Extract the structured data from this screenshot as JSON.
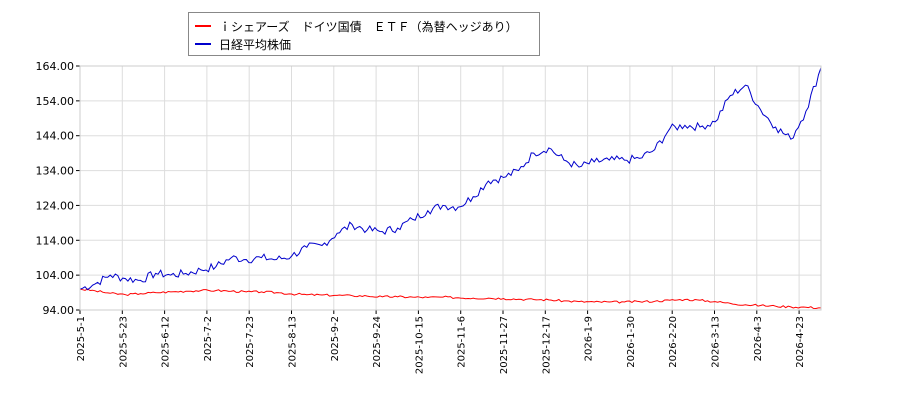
{
  "legend": {
    "series_a_label": "ｉシェアーズ　ドイツ国債　ＥＴＦ（為替ヘッジあり）",
    "series_b_label": "日経平均株価"
  },
  "chart_data": {
    "type": "line",
    "ylim": [
      94,
      164
    ],
    "yticks": [
      "94.00",
      "104.00",
      "114.00",
      "124.00",
      "134.00",
      "144.00",
      "154.00",
      "164.00"
    ],
    "xticks": [
      "2025-5-1",
      "2025-5-23",
      "2025-6-12",
      "2025-7-2",
      "2025-7-23",
      "2025-8-13",
      "2025-9-2",
      "2025-9-24",
      "2025-10-15",
      "2025-11-6",
      "2025-11-27",
      "2025-12-17",
      "2026-1-9",
      "2026-1-30",
      "2026-2-20",
      "2026-3-13",
      "2026-4-3",
      "2026-4-23"
    ],
    "grid": true,
    "legend_position": "top-left",
    "series": [
      {
        "name": "ｉシェアーズ　ドイツ国債　ＥＴＦ（為替ヘッジあり）",
        "color": "#ff0000",
        "values": [
          100,
          99.5,
          98.8,
          98.4,
          98.7,
          99.0,
          99.2,
          99.4,
          99.6,
          99.6,
          99.4,
          99.2,
          99.2,
          99.0,
          98.6,
          98.4,
          98.3,
          98.2,
          98.1,
          98.0,
          97.8,
          97.8,
          97.7,
          97.6,
          97.7,
          97.5,
          97.4,
          97.4,
          97.3,
          97.1,
          97.0,
          96.9,
          96.6,
          96.4,
          96.3,
          96.3,
          96.3,
          96.4,
          96.5,
          96.8,
          97.0,
          96.8,
          96.4,
          95.9,
          95.5,
          95.3,
          95.1,
          94.9,
          94.8,
          94.6
        ]
      },
      {
        "name": "日経平均株価",
        "color": "#0000cc",
        "values": [
          100,
          101.5,
          104,
          103,
          102.5,
          104.5,
          104,
          104.5,
          105.5,
          106.5,
          109,
          108.5,
          109,
          108.5,
          109.5,
          112,
          112.5,
          116,
          118.5,
          117,
          116.5,
          117.5,
          120,
          122.5,
          124,
          123.5,
          126.5,
          131,
          132,
          134,
          139,
          140.5,
          137,
          135,
          136.5,
          137,
          137,
          137.5,
          140,
          146,
          147,
          146.5,
          148,
          155.5,
          158.5,
          151.5,
          146.5,
          143,
          151,
          163.5
        ]
      }
    ]
  }
}
